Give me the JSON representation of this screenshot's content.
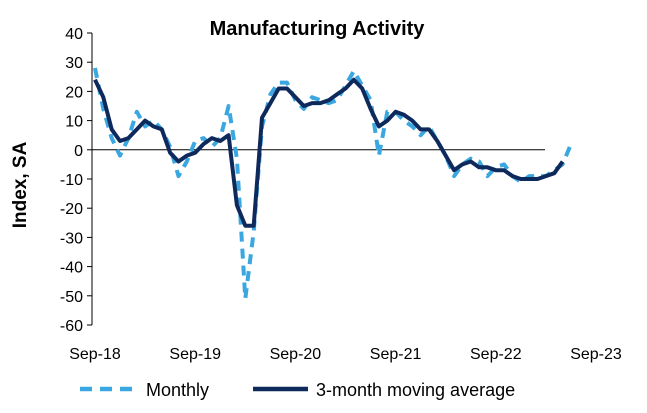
{
  "chart_data": {
    "type": "line",
    "title": "Manufacturing Activity",
    "xlabel": "",
    "ylabel": "Index, SA",
    "ylim": [
      -60,
      40
    ],
    "yticks": [
      40,
      30,
      20,
      10,
      0,
      -10,
      -20,
      -30,
      -40,
      -50,
      -60
    ],
    "x_tick_labels": [
      "Sep-18",
      "Sep-19",
      "Sep-20",
      "Sep-21",
      "Sep-22",
      "Sep-23"
    ],
    "x_start": "Sep-18",
    "x_end": "Oct-23",
    "grid": false,
    "legend_position": "bottom",
    "series": [
      {
        "name": "Monthly",
        "style": "dashed",
        "color": "#3aa7e0",
        "values": [
          28,
          14,
          4,
          -2,
          4,
          13,
          8,
          10,
          7,
          1,
          -9,
          -4,
          3,
          4,
          1,
          4,
          15,
          -3,
          -51,
          -28,
          8,
          19,
          23,
          23,
          17,
          14,
          18,
          17,
          16,
          17,
          22,
          27,
          22,
          17,
          -2,
          13,
          13,
          10,
          8,
          5,
          8,
          3,
          -2,
          -9,
          -5,
          -3,
          -4,
          -9,
          -6,
          -5,
          -9,
          -11,
          -9,
          -9,
          -9,
          -7,
          -5,
          2
        ]
      },
      {
        "name": "3-month moving average",
        "style": "solid",
        "color": "#0e2a5c",
        "values": [
          24,
          18,
          7,
          3,
          4,
          7,
          10,
          8,
          7,
          -1,
          -4,
          -2,
          -1,
          2,
          4,
          3,
          5,
          -19,
          -26,
          -26,
          11,
          16,
          21,
          21,
          18,
          15,
          16,
          16,
          17,
          19,
          21,
          24,
          21,
          14,
          8,
          10,
          13,
          12,
          10,
          7,
          7,
          3,
          -2,
          -7,
          -5,
          -4,
          -6,
          -6,
          -7,
          -7,
          -9,
          -10,
          -10,
          -10,
          -9,
          -8,
          -4
        ]
      }
    ]
  }
}
